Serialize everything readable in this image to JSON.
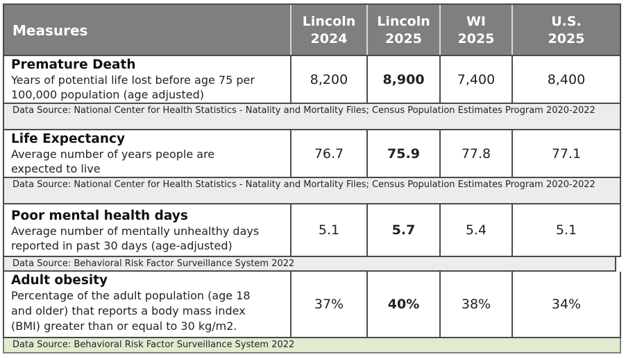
{
  "header": {
    "measures": "Measures",
    "col1": "Lincoln\n2024",
    "col2": "Lincoln\n2025",
    "col3": "WI\n2025",
    "col4": "U.S.\n2025"
  },
  "rows": [
    {
      "title": "Premature Death",
      "desc": "Years of potential life lost before age 75 per 100,000 population (age adjusted)",
      "v1": "8,200",
      "v2": "8,900",
      "v3": "7,400",
      "v4": "8,400",
      "source": "Data Source: National Center for Health Statistics - Natality and Mortality Files; Census Population Estimates Program 2020-2022"
    },
    {
      "title": "Life Expectancy",
      "desc": "Average number of years people are expected to live",
      "v1": "76.7",
      "v2": "75.9",
      "v3": "77.8",
      "v4": "77.1",
      "source": "Data Source: National Center for Health Statistics - Natality and Mortality Files; Census Population Estimates Program 2020-2022"
    },
    {
      "title": "Poor mental health days",
      "desc": "Average number of mentally unhealthy days reported in past 30 days (age-adjusted)",
      "v1": "5.1",
      "v2": "5.7",
      "v3": "5.4",
      "v4": "5.1",
      "source": "Data Source: Behavioral Risk Factor Surveillance System 2022"
    },
    {
      "title": "Adult obesity",
      "desc": "Percentage of the adult population (age 18 and older) that reports a body mass index (BMI) greater than or equal to 30 kg/m2.",
      "v1": "37%",
      "v2": "40%",
      "v3": "38%",
      "v4": "34%",
      "source": "Data Source: Behavioral Risk Factor Surveillance System 2022"
    }
  ],
  "colors": {
    "header_bg": "#7f7f7f",
    "source_bg": "#ececec",
    "source_green_bg": "#dfeccf"
  }
}
